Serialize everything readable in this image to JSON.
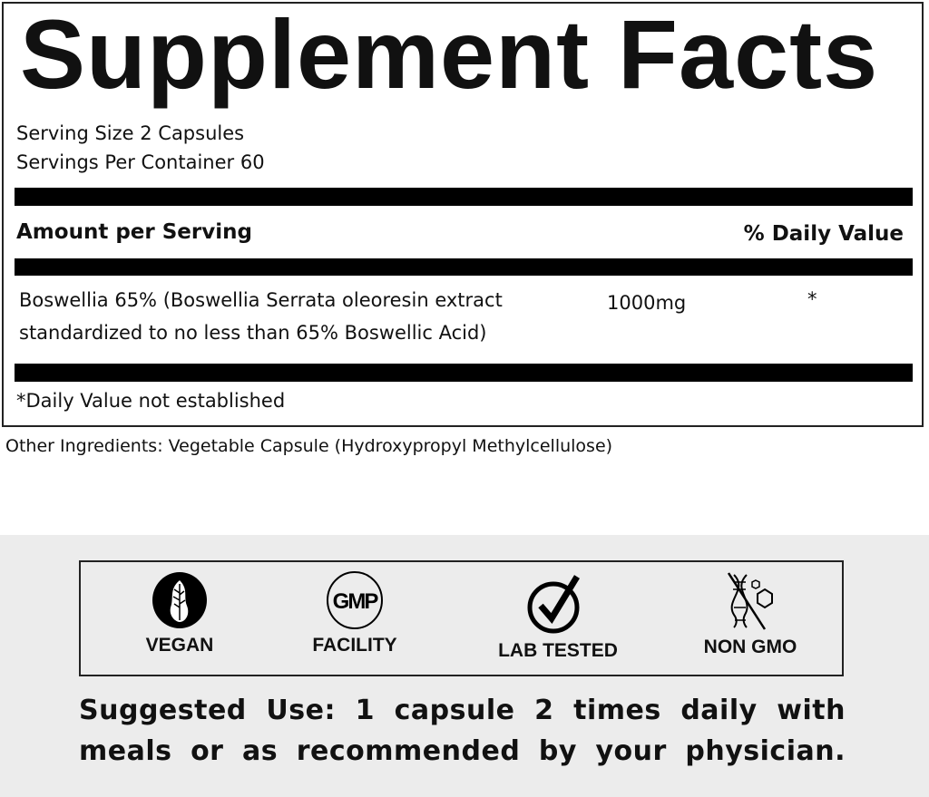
{
  "title": "Supplement Facts",
  "serving_size": "Serving Size 2 Capsules",
  "servings_per_container": "Servings Per Container 60",
  "header": {
    "amount": "Amount per Serving",
    "daily_value": "% Daily Value"
  },
  "ingredients": [
    {
      "name_line1": "Boswellia 65% (Boswellia Serrata oleoresin extract",
      "name_line2": "standardized to no less than 65% Boswellic Acid)",
      "amount": "1000mg",
      "dv": "*"
    }
  ],
  "footnote": "*Daily Value not established",
  "other_ingredients": "Other Ingredients: Vegetable Capsule (Hydroxypropyl Methylcellulose)",
  "badges": [
    {
      "icon": "leaf-icon",
      "label": "VEGAN"
    },
    {
      "icon": "gmp-icon",
      "label": "FACILITY",
      "icon_text": "GMP"
    },
    {
      "icon": "check-icon",
      "label": "LAB TESTED"
    },
    {
      "icon": "dna-crossed-icon",
      "label": "NON GMO"
    }
  ],
  "suggested_use": {
    "line1": "Suggested Use: 1 capsule 2 times daily with",
    "line2": "meals or as recommended by your physician."
  }
}
